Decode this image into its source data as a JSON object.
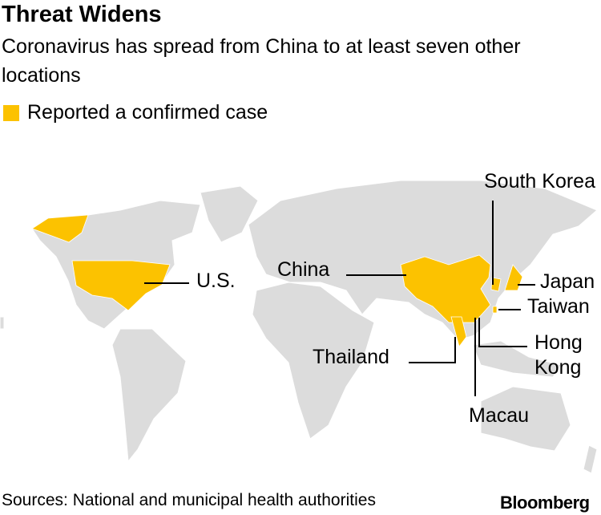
{
  "header": {
    "title": "Threat Widens",
    "subtitle": "Coronavirus has spread from China to at least seven other locations"
  },
  "legend": {
    "label": "Reported a confirmed case"
  },
  "map": {
    "labels": [
      "South Korea",
      "U.S.",
      "China",
      "Japan",
      "Taiwan",
      "Hong Kong",
      "Thailand",
      "Macau"
    ]
  },
  "footer": {
    "source": "Sources: National and municipal health authorities",
    "logo": "Bloomberg"
  }
}
